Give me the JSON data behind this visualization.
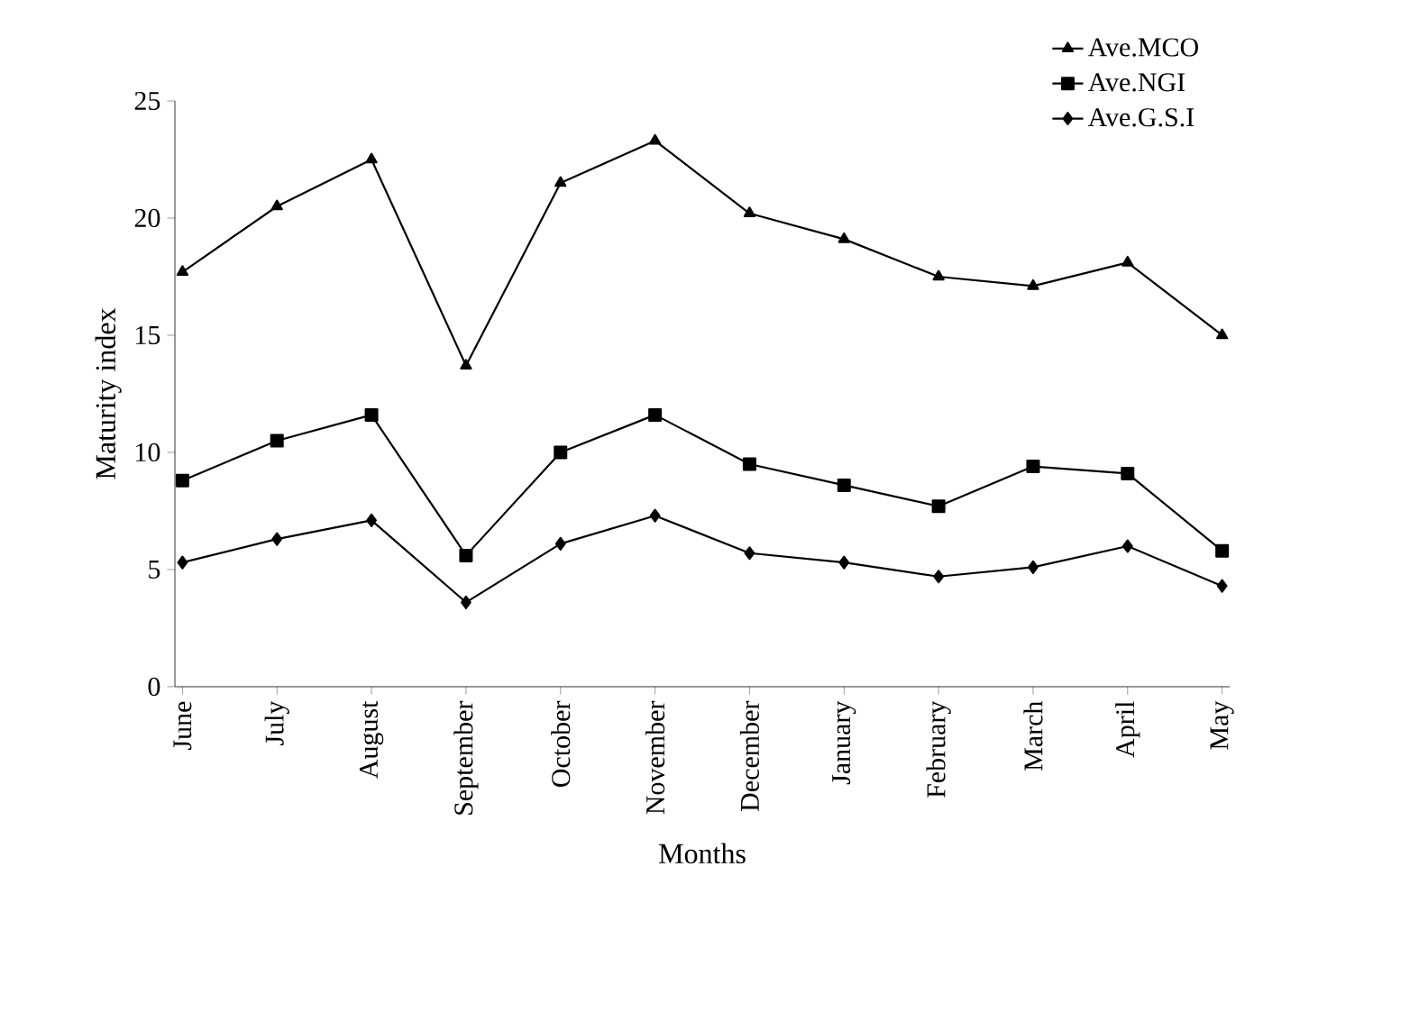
{
  "chart_data": {
    "type": "line",
    "xlabel": "Months",
    "ylabel": "Maturity index",
    "categories": [
      "June",
      "July",
      "August",
      "September",
      "October",
      "November",
      "December",
      "January",
      "February",
      "March",
      "April",
      "May"
    ],
    "series": [
      {
        "name": "Ave.MCO",
        "color": "#000000",
        "marker": "triangle",
        "values": [
          17.7,
          20.5,
          22.5,
          13.7,
          21.5,
          23.3,
          20.2,
          19.1,
          17.5,
          17.1,
          18.1,
          15.0
        ]
      },
      {
        "name": "Ave.NGI",
        "color": "#000000",
        "marker": "square",
        "values": [
          8.8,
          10.5,
          11.6,
          5.6,
          10.0,
          11.6,
          9.5,
          8.6,
          7.7,
          9.4,
          9.1,
          5.8
        ]
      },
      {
        "name": "Ave.G.S.I",
        "color": "#000000",
        "marker": "diamond",
        "values": [
          5.3,
          6.3,
          7.1,
          3.6,
          6.1,
          7.3,
          5.7,
          5.3,
          4.7,
          5.1,
          6.0,
          4.3
        ]
      }
    ],
    "ylim": [
      0,
      25
    ],
    "yticks": [
      0,
      5,
      10,
      15,
      20,
      25
    ],
    "legend": "top right",
    "grid": false,
    "line_style": "solid"
  }
}
